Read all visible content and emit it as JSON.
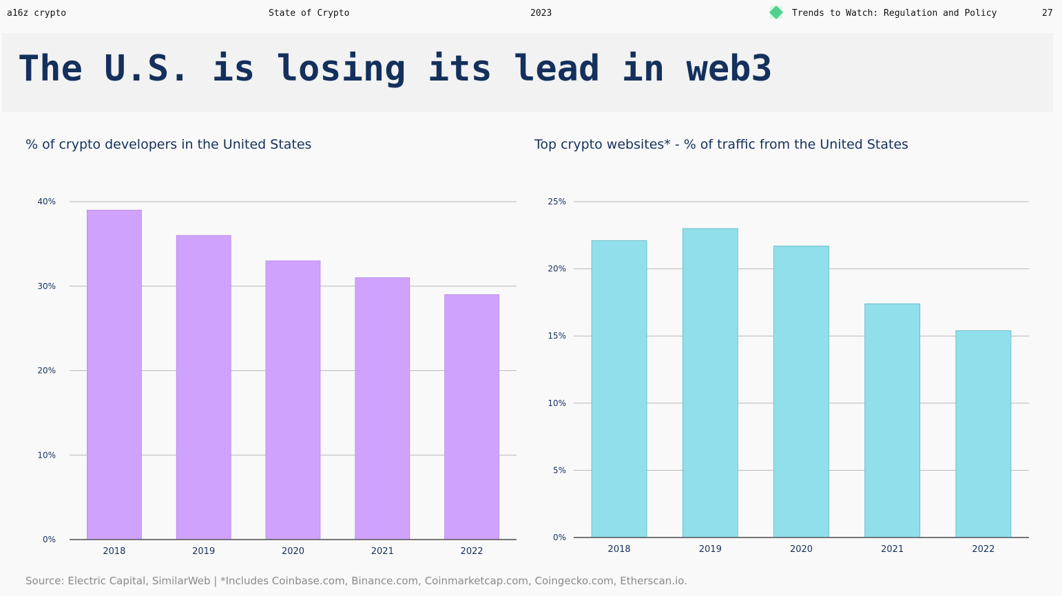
{
  "header": {
    "brand": "a16z crypto",
    "report": "State of Crypto",
    "year": "2023",
    "section": "Trends to Watch: Regulation and Policy",
    "page_number": "27",
    "section_icon": "diamond-icon",
    "section_icon_color": "#4fd18b"
  },
  "title": "The U.S. is losing its lead in web3",
  "chart_data": [
    {
      "type": "bar",
      "title": "% of crypto developers in the United States",
      "categories": [
        "2018",
        "2019",
        "2020",
        "2021",
        "2022"
      ],
      "values": [
        39,
        36,
        33,
        31,
        29
      ],
      "ylim": [
        0,
        40
      ],
      "yticks": [
        0,
        10,
        20,
        30,
        40
      ],
      "ytick_labels": [
        "0%",
        "10%",
        "20%",
        "30%",
        "40%"
      ],
      "xlabel": "",
      "ylabel": "",
      "grid": true,
      "bar_color": "#cfa3fd"
    },
    {
      "type": "bar",
      "title": "Top crypto websites* - % of traffic from the United States",
      "categories": [
        "2018",
        "2019",
        "2020",
        "2021",
        "2022"
      ],
      "values": [
        22.1,
        23.0,
        21.7,
        17.4,
        15.4
      ],
      "ylim": [
        0,
        25
      ],
      "yticks": [
        0,
        5,
        10,
        15,
        20,
        25
      ],
      "ytick_labels": [
        "0%",
        "5%",
        "10%",
        "15%",
        "20%",
        "25%"
      ],
      "xlabel": "",
      "ylabel": "",
      "grid": true,
      "bar_color": "#91dfea"
    }
  ],
  "footer": {
    "source": "Source: Electric Capital, SimilarWeb | *Includes Coinbase.com, Binance.com, Coinmarketcap.com, Coingecko.com, Etherscan.io."
  }
}
